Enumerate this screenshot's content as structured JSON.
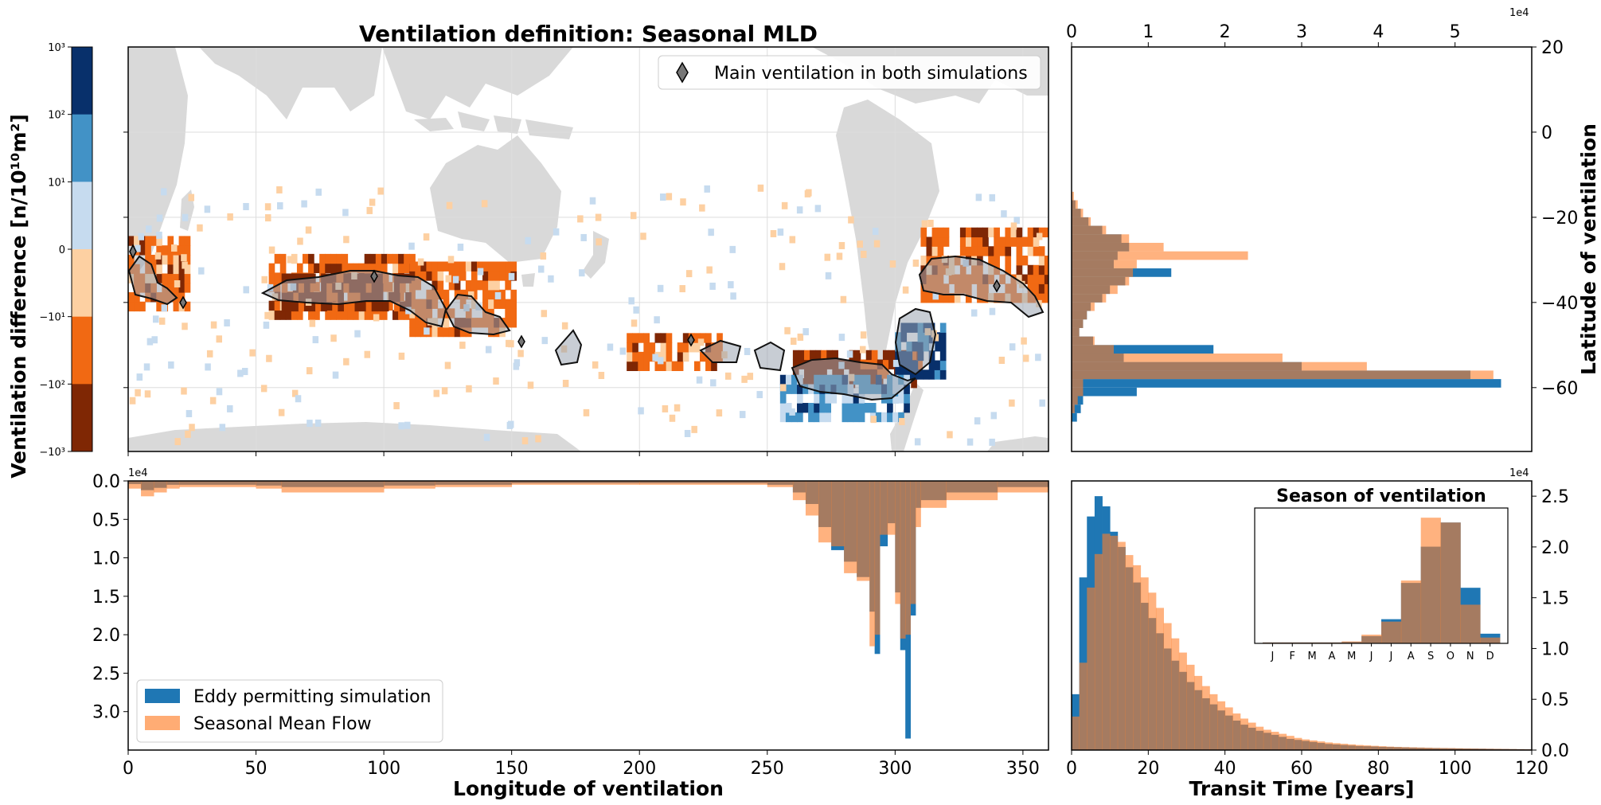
{
  "colors": {
    "eddy": "#1f77b4",
    "seasonal": "#ff7f2a",
    "overlap": "#a3775b",
    "land": "#d9d9d9",
    "grid": "#dddddd"
  },
  "colorbar": {
    "label": "Ventilation difference [n/10¹⁰m²]",
    "ticks": [
      "10³",
      "10²",
      "10¹",
      "0",
      "−10¹",
      "−10²",
      "−10³"
    ],
    "colors": [
      "#08306b",
      "#4292c6",
      "#c6dbef",
      "#fdd0a2",
      "#f16913",
      "#7f2704"
    ],
    "bin_labels": [
      "10² to 10³",
      "10¹ to 10²",
      "0 to 10¹",
      "−10¹ to 0",
      "−10² to −10¹",
      "−10³ to −10²"
    ]
  },
  "map": {
    "title": "Ventilation definition: Seasonal MLD",
    "legend_label": "Main ventilation in both simulations",
    "legend_placement": "top-right",
    "grid": true
  },
  "lat_hist": {
    "ylabel": "Latitude of ventilation",
    "exponent": "1e4",
    "x_ticks": [
      "0",
      "1",
      "2",
      "3",
      "4",
      "5"
    ],
    "y_ticks": [
      "20",
      "0",
      "−20",
      "−40",
      "−60"
    ]
  },
  "lon_hist": {
    "xlabel": "Longitude of ventilation",
    "exponent": "1e4",
    "x_ticks": [
      "0",
      "50",
      "100",
      "150",
      "200",
      "250",
      "300",
      "350"
    ],
    "y_ticks": [
      "0.0",
      "0.5",
      "1.0",
      "1.5",
      "2.0",
      "2.5",
      "3.0"
    ],
    "legend": [
      "Eddy permitting simulation",
      "Seasonal Mean Flow"
    ],
    "legend_placement": "lower-left"
  },
  "tt_hist": {
    "xlabel": "Transit Time [years]",
    "exponent": "1e4",
    "x_ticks": [
      "0",
      "20",
      "40",
      "60",
      "80",
      "100",
      "120"
    ],
    "y_ticks": [
      "0.0",
      "0.5",
      "1.0",
      "1.5",
      "2.0",
      "2.5"
    ]
  },
  "season_inset": {
    "title": "Season of ventilation",
    "months": [
      "J",
      "F",
      "M",
      "A",
      "M",
      "J",
      "J",
      "A",
      "S",
      "O",
      "N",
      "D"
    ]
  },
  "chart_data": [
    {
      "type": "heatmap",
      "title": "Ventilation definition: Seasonal MLD",
      "xlabel": "",
      "ylabel": "",
      "xlim": [
        0,
        360
      ],
      "ylim": [
        -75,
        20
      ],
      "grid": true,
      "colorbar_label": "Ventilation difference [n/10¹⁰m²]",
      "legend": [
        "Main ventilation in both simulations"
      ],
      "cells": [
        {
          "lon": [
            0,
            22
          ],
          "lat": [
            -42,
            -26
          ],
          "bin": 4
        },
        {
          "lon": [
            55,
            112
          ],
          "lat": [
            -44,
            -30
          ],
          "bin": 4
        },
        {
          "lon": [
            110,
            150
          ],
          "lat": [
            -48,
            -32
          ],
          "bin": 4
        },
        {
          "lon": [
            195,
            232
          ],
          "lat": [
            -56,
            -48
          ],
          "bin": 4
        },
        {
          "lon": [
            310,
            360
          ],
          "lat": [
            -40,
            -24
          ],
          "bin": 4
        },
        {
          "lon": [
            260,
            310
          ],
          "lat": [
            -60,
            -52
          ],
          "bin": 5
        },
        {
          "lon": [
            300,
            318
          ],
          "lat": [
            -58,
            -45
          ],
          "bin": 0
        },
        {
          "lon": [
            255,
            305
          ],
          "lat": [
            -68,
            -58
          ],
          "bin": 1
        },
        {
          "lon": [
            60,
            110
          ],
          "lat": [
            -42,
            -34
          ],
          "bin": 5
        }
      ]
    },
    {
      "type": "bar",
      "orientation": "horizontal",
      "xlabel": "",
      "ylabel": "Latitude of ventilation",
      "xlim": [
        0,
        60000
      ],
      "ylim": [
        -75,
        20
      ],
      "bin_width": 2,
      "series": [
        {
          "name": "",
          "bins": [
            [
              -18,
              -16,
              500
            ],
            [
              -20,
              -18,
              1200
            ],
            [
              -22,
              -20,
              2200
            ],
            [
              -24,
              -22,
              4000
            ],
            [
              -26,
              -24,
              6500
            ],
            [
              -28,
              -26,
              7500
            ],
            [
              -30,
              -28,
              6000
            ],
            [
              -32,
              -30,
              5500
            ],
            [
              -34,
              -32,
              13000
            ],
            [
              -36,
              -34,
              7000
            ],
            [
              -38,
              -36,
              5000
            ],
            [
              -40,
              -38,
              4000
            ],
            [
              -42,
              -40,
              2500
            ],
            [
              -44,
              -42,
              2000
            ],
            [
              -46,
              -44,
              1500
            ],
            [
              -48,
              -46,
              1000
            ],
            [
              -50,
              -48,
              2800
            ],
            [
              -52,
              -50,
              18500
            ],
            [
              -54,
              -52,
              6800
            ],
            [
              -56,
              -54,
              30000
            ],
            [
              -58,
              -56,
              52000
            ],
            [
              -60,
              -58,
              56000
            ],
            [
              -62,
              -60,
              8500
            ],
            [
              -64,
              -62,
              1500
            ],
            [
              -66,
              -64,
              1200
            ],
            [
              -68,
              -66,
              700
            ]
          ]
        },
        {
          "name": "",
          "bins": [
            [
              -16,
              -14,
              300
            ],
            [
              -18,
              -16,
              800
            ],
            [
              -20,
              -18,
              1500
            ],
            [
              -22,
              -20,
              2500
            ],
            [
              -24,
              -22,
              4500
            ],
            [
              -26,
              -24,
              7500
            ],
            [
              -28,
              -26,
              12000
            ],
            [
              -30,
              -28,
              23000
            ],
            [
              -32,
              -30,
              8500
            ],
            [
              -34,
              -32,
              8000
            ],
            [
              -36,
              -34,
              7500
            ],
            [
              -38,
              -36,
              6000
            ],
            [
              -40,
              -38,
              4500
            ],
            [
              -42,
              -40,
              3000
            ],
            [
              -44,
              -42,
              2000
            ],
            [
              -46,
              -44,
              1500
            ],
            [
              -48,
              -46,
              1000
            ],
            [
              -50,
              -48,
              3000
            ],
            [
              -52,
              -50,
              5500
            ],
            [
              -54,
              -52,
              27500
            ],
            [
              -56,
              -54,
              38500
            ],
            [
              -58,
              -56,
              55000
            ],
            [
              -60,
              -58,
              1500
            ],
            [
              -62,
              -60,
              1500
            ],
            [
              -64,
              -62,
              800
            ],
            [
              -66,
              -64,
              400
            ]
          ]
        }
      ]
    },
    {
      "type": "bar",
      "xlabel": "Longitude of ventilation",
      "ylabel": "",
      "xlim": [
        0,
        360
      ],
      "ylim": [
        35000,
        0
      ],
      "series": [
        {
          "name": "Eddy permitting simulation",
          "bins": [
            [
              0,
              5,
              400
            ],
            [
              5,
              10,
              1200
            ],
            [
              10,
              15,
              900
            ],
            [
              15,
              20,
              500
            ],
            [
              20,
              50,
              500
            ],
            [
              50,
              60,
              600
            ],
            [
              60,
              100,
              800
            ],
            [
              100,
              120,
              600
            ],
            [
              120,
              150,
              500
            ],
            [
              150,
              200,
              300
            ],
            [
              200,
              250,
              300
            ],
            [
              250,
              260,
              500
            ],
            [
              260,
              265,
              1500
            ],
            [
              265,
              270,
              3000
            ],
            [
              270,
              275,
              6000
            ],
            [
              275,
              280,
              9000
            ],
            [
              280,
              285,
              10500
            ],
            [
              285,
              290,
              12500
            ],
            [
              290,
              292,
              17000
            ],
            [
              292,
              294,
              22500
            ],
            [
              294,
              297,
              8500
            ],
            [
              297,
              300,
              5500
            ],
            [
              300,
              302,
              14500
            ],
            [
              302,
              304,
              22000
            ],
            [
              304,
              306,
              33500
            ],
            [
              306,
              308,
              17500
            ],
            [
              308,
              310,
              3500
            ],
            [
              310,
              320,
              2500
            ],
            [
              320,
              340,
              1500
            ],
            [
              340,
              360,
              800
            ]
          ]
        },
        {
          "name": "Seasonal Mean Flow",
          "bins": [
            [
              0,
              5,
              1000
            ],
            [
              5,
              10,
              2000
            ],
            [
              10,
              15,
              1500
            ],
            [
              15,
              20,
              1000
            ],
            [
              20,
              50,
              800
            ],
            [
              50,
              60,
              1000
            ],
            [
              60,
              100,
              1500
            ],
            [
              100,
              120,
              1000
            ],
            [
              120,
              150,
              800
            ],
            [
              150,
              200,
              500
            ],
            [
              200,
              250,
              500
            ],
            [
              250,
              260,
              800
            ],
            [
              260,
              265,
              2500
            ],
            [
              265,
              270,
              4500
            ],
            [
              270,
              275,
              8000
            ],
            [
              275,
              280,
              8500
            ],
            [
              280,
              285,
              12000
            ],
            [
              285,
              290,
              13000
            ],
            [
              290,
              292,
              21500
            ],
            [
              292,
              294,
              20000
            ],
            [
              294,
              297,
              7000
            ],
            [
              297,
              300,
              7000
            ],
            [
              300,
              302,
              16000
            ],
            [
              302,
              304,
              20500
            ],
            [
              304,
              306,
              20000
            ],
            [
              306,
              308,
              16000
            ],
            [
              308,
              310,
              6000
            ],
            [
              310,
              320,
              3500
            ],
            [
              320,
              340,
              2500
            ],
            [
              340,
              360,
              1500
            ]
          ]
        }
      ]
    },
    {
      "type": "bar",
      "xlabel": "Transit Time [years]",
      "ylabel": "",
      "xlim": [
        0,
        120
      ],
      "ylim": [
        0,
        26500
      ],
      "bin_width": 2,
      "series": [
        {
          "name": "Eddy permitting simulation",
          "values": [
            5500,
            17000,
            23000,
            25000,
            24000,
            21500,
            20000,
            18000,
            16500,
            14500,
            13000,
            11500,
            10000,
            8800,
            7700,
            6700,
            5900,
            5100,
            4500,
            3900,
            3400,
            2900,
            2500,
            2200,
            1900,
            1700,
            1500,
            1300,
            1100,
            1000,
            900,
            800,
            700,
            600,
            550,
            500,
            450,
            400,
            380,
            350,
            320,
            300,
            280,
            260,
            240,
            220,
            200,
            190,
            180,
            170,
            160,
            150,
            140,
            130,
            120,
            110,
            100,
            90,
            80,
            70
          ]
        },
        {
          "name": "Seasonal Mean Flow",
          "values": [
            3300,
            8600,
            16000,
            19300,
            21300,
            21100,
            20500,
            19200,
            18200,
            17000,
            15500,
            14000,
            12500,
            11000,
            9600,
            8400,
            7300,
            6300,
            5500,
            4800,
            4200,
            3600,
            3100,
            2700,
            2300,
            2000,
            1800,
            1600,
            1400,
            1200,
            1050,
            950,
            850,
            750,
            680,
            620,
            560,
            500,
            460,
            420,
            380,
            340,
            310,
            290,
            270,
            250,
            230,
            210,
            200,
            190,
            175,
            160,
            150,
            140,
            130,
            120,
            110,
            100,
            90,
            80
          ]
        }
      ]
    },
    {
      "type": "bar",
      "title": "Season of ventilation",
      "categories": [
        "J",
        "F",
        "M",
        "A",
        "M",
        "J",
        "J",
        "A",
        "S",
        "O",
        "N",
        "D"
      ],
      "ylim": [
        0,
        28000
      ],
      "series": [
        {
          "name": "",
          "values": [
            200,
            200,
            200,
            200,
            300,
            1500,
            5000,
            12500,
            20000,
            25000,
            11500,
            2000
          ]
        },
        {
          "name": "",
          "values": [
            200,
            200,
            200,
            200,
            400,
            1800,
            4500,
            13000,
            26000,
            25000,
            8000,
            1200
          ]
        }
      ]
    }
  ]
}
